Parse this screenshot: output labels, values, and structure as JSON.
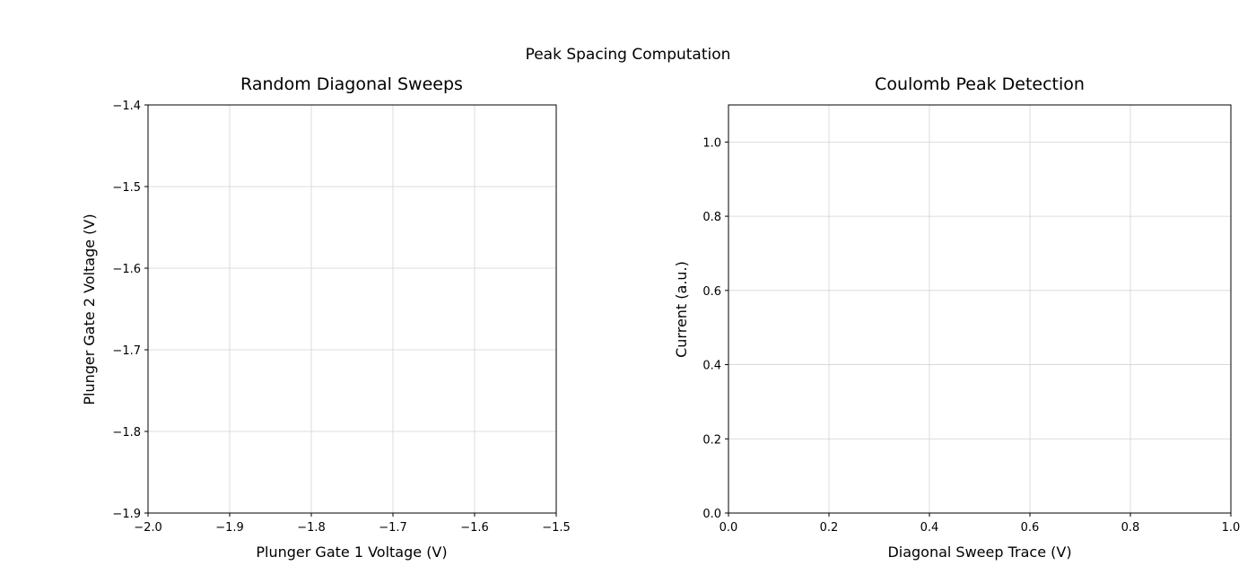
{
  "figure": {
    "suptitle": "Peak Spacing Computation"
  },
  "chart_data": [
    {
      "type": "line",
      "title": "Random Diagonal Sweeps",
      "xlabel": "Plunger Gate 1 Voltage (V)",
      "ylabel": "Plunger Gate 2 Voltage (V)",
      "xlim": [
        -2.0,
        -1.5
      ],
      "ylim": [
        -1.9,
        -1.4
      ],
      "xticks": [
        -2.0,
        -1.9,
        -1.8,
        -1.7,
        -1.6,
        -1.5
      ],
      "yticks": [
        -1.9,
        -1.8,
        -1.7,
        -1.6,
        -1.5,
        -1.4
      ],
      "xtick_labels": [
        "−2.0",
        "−1.9",
        "−1.8",
        "−1.7",
        "−1.6",
        "−1.5"
      ],
      "ytick_labels": [
        "−1.9",
        "−1.8",
        "−1.7",
        "−1.6",
        "−1.5",
        "−1.4"
      ],
      "grid": true,
      "series": []
    },
    {
      "type": "line",
      "title": "Coulomb Peak Detection",
      "xlabel": "Diagonal Sweep Trace (V)",
      "ylabel": "Current (a.u.)",
      "xlim": [
        0.0,
        1.0
      ],
      "ylim": [
        0.0,
        1.1
      ],
      "xticks": [
        0.0,
        0.2,
        0.4,
        0.6,
        0.8,
        1.0
      ],
      "yticks": [
        0.0,
        0.2,
        0.4,
        0.6,
        0.8,
        1.0
      ],
      "xtick_labels": [
        "0.0",
        "0.2",
        "0.4",
        "0.6",
        "0.8",
        "1.0"
      ],
      "ytick_labels": [
        "0.0",
        "0.2",
        "0.4",
        "0.6",
        "0.8",
        "1.0"
      ],
      "grid": true,
      "series": []
    }
  ]
}
